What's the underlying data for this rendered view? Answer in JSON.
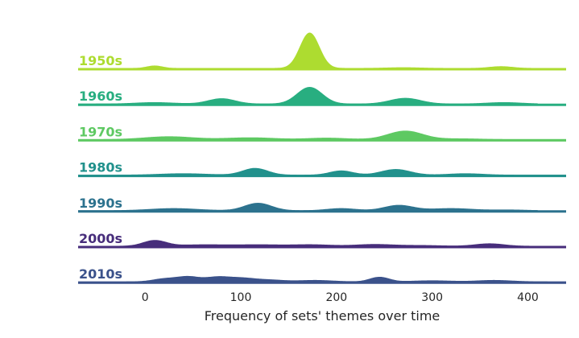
{
  "chart_data": {
    "type": "ridgeline",
    "title": "",
    "xlabel": "Frequency of sets' themes over time",
    "ylabel": "",
    "xlim": [
      -70,
      440
    ],
    "x_ticks": [
      0,
      100,
      200,
      300,
      400
    ],
    "x_tick_labels": [
      "0",
      "100",
      "200",
      "300",
      "400"
    ],
    "grid": false,
    "series": [
      {
        "name": "1950s",
        "color": "#addc30",
        "x_range": [
          -70,
          440
        ],
        "peaks": [
          [
            10,
            8,
            0.07
          ],
          [
            172,
            10,
            1.0
          ],
          [
            270,
            18,
            0.02
          ],
          [
            372,
            12,
            0.05
          ]
        ]
      },
      {
        "name": "1960s",
        "color": "#28ae80",
        "x_range": [
          -70,
          410
        ],
        "peaks": [
          [
            10,
            20,
            0.04
          ],
          [
            80,
            14,
            0.15
          ],
          [
            172,
            13,
            0.47
          ],
          [
            272,
            16,
            0.16
          ],
          [
            375,
            18,
            0.04
          ]
        ]
      },
      {
        "name": "1970s",
        "color": "#5ec962",
        "x_range": [
          -70,
          440
        ],
        "peaks": [
          [
            25,
            25,
            0.08
          ],
          [
            110,
            25,
            0.05
          ],
          [
            190,
            20,
            0.04
          ],
          [
            272,
            18,
            0.24
          ],
          [
            330,
            20,
            0.02
          ]
        ]
      },
      {
        "name": "1980s",
        "color": "#21918c",
        "x_range": [
          -70,
          440
        ],
        "peaks": [
          [
            40,
            25,
            0.04
          ],
          [
            115,
            13,
            0.19
          ],
          [
            205,
            12,
            0.12
          ],
          [
            262,
            15,
            0.16
          ],
          [
            335,
            18,
            0.04
          ]
        ]
      },
      {
        "name": "1990s",
        "color": "#2c728e",
        "x_range": [
          -70,
          410
        ],
        "peaks": [
          [
            30,
            25,
            0.06
          ],
          [
            118,
            14,
            0.21
          ],
          [
            205,
            15,
            0.06
          ],
          [
            265,
            15,
            0.15
          ],
          [
            320,
            22,
            0.06
          ],
          [
            380,
            18,
            0.02
          ]
        ]
      },
      {
        "name": "2000s",
        "color": "#472d7b",
        "x_range": [
          -70,
          410
        ],
        "peaks": [
          [
            10,
            12,
            0.16
          ],
          [
            60,
            25,
            0.04
          ],
          [
            120,
            25,
            0.04
          ],
          [
            175,
            20,
            0.04
          ],
          [
            240,
            20,
            0.05
          ],
          [
            290,
            20,
            0.02
          ],
          [
            360,
            15,
            0.07
          ]
        ]
      },
      {
        "name": "2010s",
        "color": "#3b528b",
        "x_range": [
          -70,
          440
        ],
        "peaks": [
          [
            20,
            12,
            0.08
          ],
          [
            45,
            12,
            0.14
          ],
          [
            75,
            12,
            0.12
          ],
          [
            100,
            14,
            0.1
          ],
          [
            130,
            15,
            0.05
          ],
          [
            178,
            18,
            0.04
          ],
          [
            245,
            10,
            0.13
          ],
          [
            300,
            20,
            0.03
          ],
          [
            365,
            18,
            0.04
          ]
        ]
      }
    ]
  }
}
